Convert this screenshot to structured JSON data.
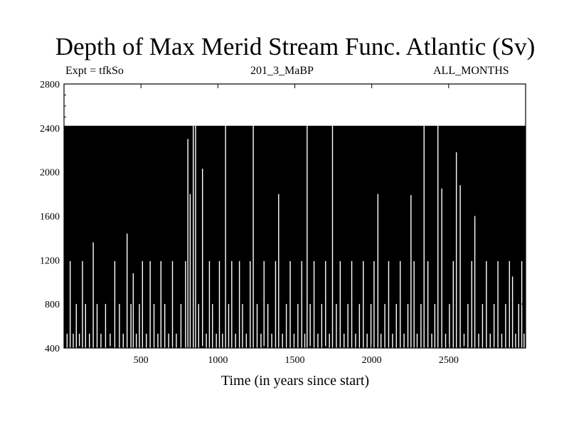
{
  "title": "Depth of Max Merid Stream Func. Atlantic (Sv)",
  "header": {
    "left": "Expt = tfkSo",
    "center": "201_3_MaBP",
    "right": "ALL_MONTHS"
  },
  "chart_data": {
    "type": "bar",
    "title": "Depth of Max Merid Stream Func. Atlantic (Sv)",
    "xlabel": "Time (in years since start)",
    "ylabel": "",
    "xlim": [
      0,
      3000
    ],
    "ylim": [
      400,
      2800
    ],
    "xticks": [
      500,
      1000,
      1500,
      2000,
      2500
    ],
    "yticks": [
      400,
      800,
      1200,
      1600,
      2000,
      2400,
      2800
    ],
    "baseline_level": 2420,
    "fill_color": "#000000",
    "dips": [
      {
        "x": 20,
        "y": 530
      },
      {
        "x": 40,
        "y": 1190
      },
      {
        "x": 60,
        "y": 530
      },
      {
        "x": 80,
        "y": 800
      },
      {
        "x": 100,
        "y": 530
      },
      {
        "x": 120,
        "y": 1190
      },
      {
        "x": 140,
        "y": 800
      },
      {
        "x": 165,
        "y": 530
      },
      {
        "x": 190,
        "y": 1360
      },
      {
        "x": 215,
        "y": 800
      },
      {
        "x": 240,
        "y": 530
      },
      {
        "x": 270,
        "y": 800
      },
      {
        "x": 300,
        "y": 530
      },
      {
        "x": 330,
        "y": 1190
      },
      {
        "x": 360,
        "y": 800
      },
      {
        "x": 385,
        "y": 530
      },
      {
        "x": 410,
        "y": 1440
      },
      {
        "x": 435,
        "y": 800
      },
      {
        "x": 450,
        "y": 1080
      },
      {
        "x": 470,
        "y": 530
      },
      {
        "x": 490,
        "y": 800
      },
      {
        "x": 510,
        "y": 1190
      },
      {
        "x": 535,
        "y": 530
      },
      {
        "x": 560,
        "y": 1190
      },
      {
        "x": 585,
        "y": 800
      },
      {
        "x": 610,
        "y": 530
      },
      {
        "x": 630,
        "y": 1190
      },
      {
        "x": 655,
        "y": 800
      },
      {
        "x": 680,
        "y": 530
      },
      {
        "x": 705,
        "y": 1190
      },
      {
        "x": 730,
        "y": 530
      },
      {
        "x": 760,
        "y": 800
      },
      {
        "x": 790,
        "y": 1190
      },
      {
        "x": 805,
        "y": 2300
      },
      {
        "x": 820,
        "y": 1800
      },
      {
        "x": 840,
        "y": 2420
      },
      {
        "x": 855,
        "y": 2420
      },
      {
        "x": 875,
        "y": 800
      },
      {
        "x": 900,
        "y": 2030
      },
      {
        "x": 925,
        "y": 530
      },
      {
        "x": 945,
        "y": 1190
      },
      {
        "x": 965,
        "y": 800
      },
      {
        "x": 990,
        "y": 530
      },
      {
        "x": 1010,
        "y": 1190
      },
      {
        "x": 1030,
        "y": 530
      },
      {
        "x": 1050,
        "y": 2420
      },
      {
        "x": 1070,
        "y": 800
      },
      {
        "x": 1090,
        "y": 1190
      },
      {
        "x": 1115,
        "y": 530
      },
      {
        "x": 1140,
        "y": 1190
      },
      {
        "x": 1160,
        "y": 800
      },
      {
        "x": 1185,
        "y": 530
      },
      {
        "x": 1210,
        "y": 1190
      },
      {
        "x": 1230,
        "y": 2420
      },
      {
        "x": 1255,
        "y": 800
      },
      {
        "x": 1280,
        "y": 530
      },
      {
        "x": 1300,
        "y": 1190
      },
      {
        "x": 1325,
        "y": 800
      },
      {
        "x": 1350,
        "y": 530
      },
      {
        "x": 1375,
        "y": 1190
      },
      {
        "x": 1395,
        "y": 1800
      },
      {
        "x": 1420,
        "y": 530
      },
      {
        "x": 1445,
        "y": 800
      },
      {
        "x": 1470,
        "y": 1190
      },
      {
        "x": 1495,
        "y": 530
      },
      {
        "x": 1520,
        "y": 800
      },
      {
        "x": 1545,
        "y": 1190
      },
      {
        "x": 1565,
        "y": 530
      },
      {
        "x": 1580,
        "y": 2420
      },
      {
        "x": 1600,
        "y": 800
      },
      {
        "x": 1625,
        "y": 1190
      },
      {
        "x": 1650,
        "y": 530
      },
      {
        "x": 1675,
        "y": 800
      },
      {
        "x": 1700,
        "y": 1190
      },
      {
        "x": 1725,
        "y": 530
      },
      {
        "x": 1745,
        "y": 2420
      },
      {
        "x": 1770,
        "y": 800
      },
      {
        "x": 1795,
        "y": 1190
      },
      {
        "x": 1820,
        "y": 530
      },
      {
        "x": 1845,
        "y": 800
      },
      {
        "x": 1870,
        "y": 1190
      },
      {
        "x": 1895,
        "y": 530
      },
      {
        "x": 1920,
        "y": 800
      },
      {
        "x": 1945,
        "y": 1190
      },
      {
        "x": 1970,
        "y": 530
      },
      {
        "x": 1995,
        "y": 800
      },
      {
        "x": 2015,
        "y": 1190
      },
      {
        "x": 2040,
        "y": 1800
      },
      {
        "x": 2060,
        "y": 530
      },
      {
        "x": 2085,
        "y": 800
      },
      {
        "x": 2110,
        "y": 1190
      },
      {
        "x": 2135,
        "y": 530
      },
      {
        "x": 2160,
        "y": 800
      },
      {
        "x": 2185,
        "y": 1190
      },
      {
        "x": 2210,
        "y": 530
      },
      {
        "x": 2235,
        "y": 800
      },
      {
        "x": 2255,
        "y": 1790
      },
      {
        "x": 2275,
        "y": 1190
      },
      {
        "x": 2295,
        "y": 530
      },
      {
        "x": 2320,
        "y": 800
      },
      {
        "x": 2340,
        "y": 2420
      },
      {
        "x": 2365,
        "y": 1190
      },
      {
        "x": 2390,
        "y": 530
      },
      {
        "x": 2410,
        "y": 800
      },
      {
        "x": 2430,
        "y": 2420
      },
      {
        "x": 2455,
        "y": 1850
      },
      {
        "x": 2480,
        "y": 530
      },
      {
        "x": 2505,
        "y": 800
      },
      {
        "x": 2530,
        "y": 1190
      },
      {
        "x": 2550,
        "y": 2180
      },
      {
        "x": 2575,
        "y": 1880
      },
      {
        "x": 2600,
        "y": 530
      },
      {
        "x": 2625,
        "y": 800
      },
      {
        "x": 2650,
        "y": 1190
      },
      {
        "x": 2670,
        "y": 1600
      },
      {
        "x": 2695,
        "y": 530
      },
      {
        "x": 2720,
        "y": 800
      },
      {
        "x": 2745,
        "y": 1190
      },
      {
        "x": 2770,
        "y": 530
      },
      {
        "x": 2795,
        "y": 800
      },
      {
        "x": 2820,
        "y": 1190
      },
      {
        "x": 2845,
        "y": 530
      },
      {
        "x": 2870,
        "y": 800
      },
      {
        "x": 2895,
        "y": 1190
      },
      {
        "x": 2915,
        "y": 1050
      },
      {
        "x": 2935,
        "y": 530
      },
      {
        "x": 2955,
        "y": 800
      },
      {
        "x": 2975,
        "y": 1190
      },
      {
        "x": 2990,
        "y": 530
      }
    ]
  }
}
